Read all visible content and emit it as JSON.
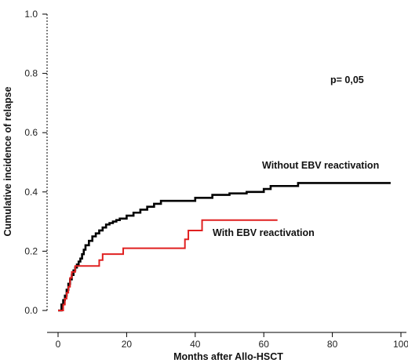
{
  "chart_data": {
    "type": "line",
    "step": true,
    "title": "",
    "xlabel": "Months after Allo-HSCT",
    "ylabel": "Cumulative incidence of relapse",
    "xlim": [
      0,
      100
    ],
    "ylim": [
      0,
      1.0
    ],
    "x_ticks": [
      "0",
      "20",
      "40",
      "60",
      "80",
      "100"
    ],
    "y_ticks": [
      "0.0",
      "0.2",
      "0.4",
      "0.6",
      "0.8",
      "1.0"
    ],
    "annotation": "p= 0,05",
    "series": [
      {
        "name": "Without EBV reactivation",
        "color": "#000000",
        "x": [
          0,
          1,
          1.5,
          2,
          2.5,
          3,
          3.5,
          4,
          4.5,
          5,
          5.5,
          6,
          6.5,
          7,
          7.5,
          8,
          9,
          10,
          11,
          12,
          13,
          14,
          15,
          16,
          17,
          18,
          20,
          22,
          24,
          26,
          28,
          30,
          35,
          38,
          40,
          45,
          50,
          55,
          60,
          62,
          65,
          70,
          75,
          80,
          97
        ],
        "y": [
          0,
          0.02,
          0.035,
          0.05,
          0.07,
          0.09,
          0.105,
          0.12,
          0.135,
          0.145,
          0.155,
          0.165,
          0.175,
          0.19,
          0.205,
          0.22,
          0.235,
          0.25,
          0.26,
          0.27,
          0.28,
          0.29,
          0.295,
          0.3,
          0.305,
          0.31,
          0.32,
          0.33,
          0.34,
          0.35,
          0.36,
          0.37,
          0.37,
          0.37,
          0.38,
          0.39,
          0.395,
          0.4,
          0.41,
          0.42,
          0.42,
          0.43,
          0.43,
          0.43,
          0.43
        ]
      },
      {
        "name": "With EBV reactivation",
        "color": "#e02020",
        "x": [
          0,
          1.5,
          2,
          2.5,
          3,
          3.5,
          4,
          5,
          7,
          12,
          13,
          19,
          37,
          38,
          42,
          64
        ],
        "y": [
          0,
          0.02,
          0.04,
          0.06,
          0.08,
          0.11,
          0.13,
          0.15,
          0.15,
          0.17,
          0.19,
          0.21,
          0.24,
          0.27,
          0.305,
          0.305
        ]
      }
    ],
    "labels": {
      "without": "Without EBV reactivation",
      "with": "With EBV reactivation"
    }
  }
}
